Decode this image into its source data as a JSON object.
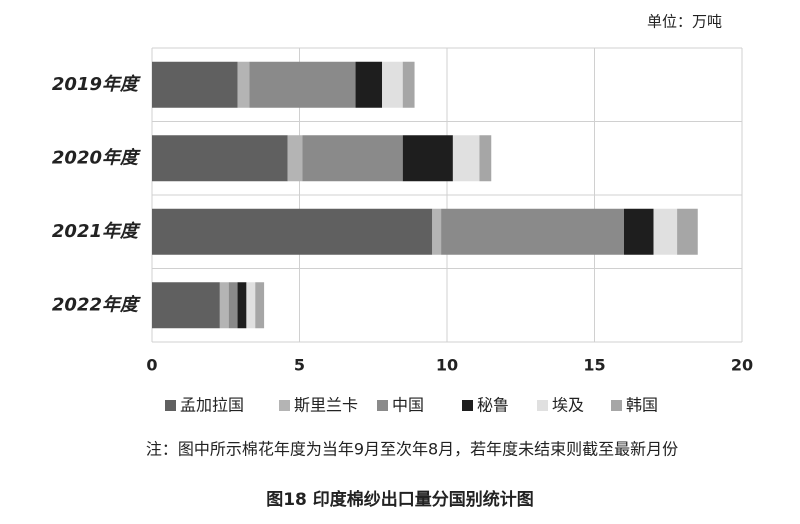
{
  "chart_data": {
    "type": "stacked-barh",
    "title": "图18  印度棉纱出口量分国别统计图",
    "unit_label": "单位：万吨",
    "note": "注：图中所示棉花年度为当年9月至次年8月，若年度未结束则截至最新月份",
    "categories": [
      "2019年度",
      "2020年度",
      "2021年度",
      "2022年度"
    ],
    "series": [
      {
        "name": "孟加拉国",
        "color": "#606060",
        "values": [
          2.9,
          4.6,
          9.5,
          2.3
        ]
      },
      {
        "name": "斯里兰卡",
        "color": "#b4b4b4",
        "values": [
          0.4,
          0.5,
          0.3,
          0.3
        ]
      },
      {
        "name": "中国",
        "color": "#8a8a8a",
        "values": [
          3.6,
          3.4,
          6.2,
          0.3
        ]
      },
      {
        "name": "秘鲁",
        "color": "#1e1e1e",
        "values": [
          0.9,
          1.7,
          1.0,
          0.3
        ]
      },
      {
        "name": "埃及",
        "color": "#e0e0e0",
        "values": [
          0.7,
          0.9,
          0.8,
          0.3
        ]
      },
      {
        "name": "韩国",
        "color": "#a6a6a6",
        "values": [
          0.4,
          0.4,
          0.7,
          0.3
        ]
      }
    ],
    "xlim": [
      0,
      20
    ],
    "xticks": [
      0,
      5,
      10,
      15,
      20
    ],
    "grid": true,
    "legend": "bottom"
  }
}
